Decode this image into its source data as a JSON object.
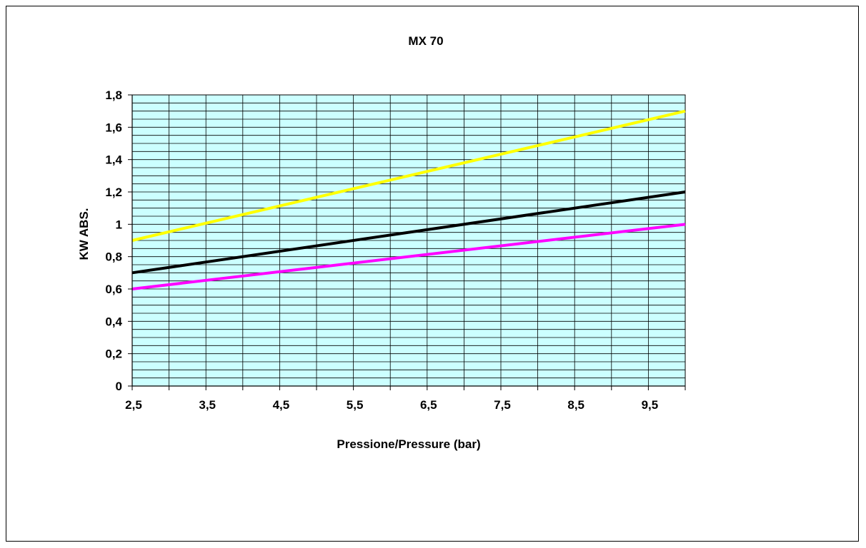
{
  "chart_data": {
    "type": "line",
    "title": "MX 70",
    "xlabel": "Pressione/Pressure (bar)",
    "ylabel": "KW ABS.",
    "xlim": [
      2.5,
      10
    ],
    "ylim": [
      0,
      1.8
    ],
    "x_ticks": [
      2.5,
      3.5,
      4.5,
      5.5,
      6.5,
      7.5,
      8.5,
      9.5
    ],
    "x_tick_labels": [
      "2,5",
      "3,5",
      "4,5",
      "5,5",
      "6,5",
      "7,5",
      "8,5",
      "9,5"
    ],
    "y_ticks": [
      0,
      0.2,
      0.4,
      0.6,
      0.8,
      1.0,
      1.2,
      1.4,
      1.6,
      1.8
    ],
    "y_tick_labels": [
      "0",
      "0,2",
      "0,4",
      "0,6",
      "0,8",
      "1",
      "1,2",
      "1,4",
      "1,6",
      "1,8"
    ],
    "x_gridlines": [
      2.5,
      3.0,
      3.5,
      4.0,
      4.5,
      5.0,
      5.5,
      6.0,
      6.5,
      7.0,
      7.5,
      8.0,
      8.5,
      9.0,
      9.5,
      10.0
    ],
    "y_minor_grid_step": 0.05,
    "grid": true,
    "legend": "none",
    "series": [
      {
        "color": "#ffff00",
        "x": [
          2.5,
          10
        ],
        "y": [
          0.9,
          1.7
        ]
      },
      {
        "color": "#000000",
        "x": [
          2.5,
          10
        ],
        "y": [
          0.7,
          1.2
        ]
      },
      {
        "color": "#ff00ff",
        "x": [
          2.5,
          10
        ],
        "y": [
          0.6,
          1.0
        ]
      }
    ],
    "plot_background": "#ccffff"
  }
}
